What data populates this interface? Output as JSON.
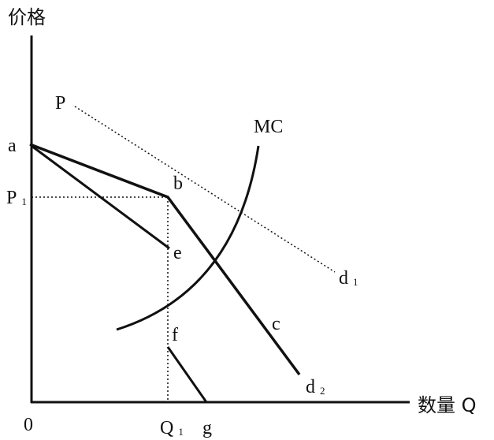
{
  "axes": {
    "y_label": "价格",
    "x_label": "数量 Q",
    "origin": "0"
  },
  "labels": [
    {
      "text": "P"
    },
    {
      "text": "MC"
    },
    {
      "text": "a"
    },
    {
      "text": "b"
    },
    {
      "text": "P",
      "sub": "1"
    },
    {
      "text": "e"
    },
    {
      "text": "d",
      "sub": "1"
    },
    {
      "text": "c"
    },
    {
      "text": "f"
    },
    {
      "text": "d",
      "sub": "2"
    },
    {
      "text": "Q",
      "sub": "1"
    },
    {
      "text": "g"
    }
  ]
}
